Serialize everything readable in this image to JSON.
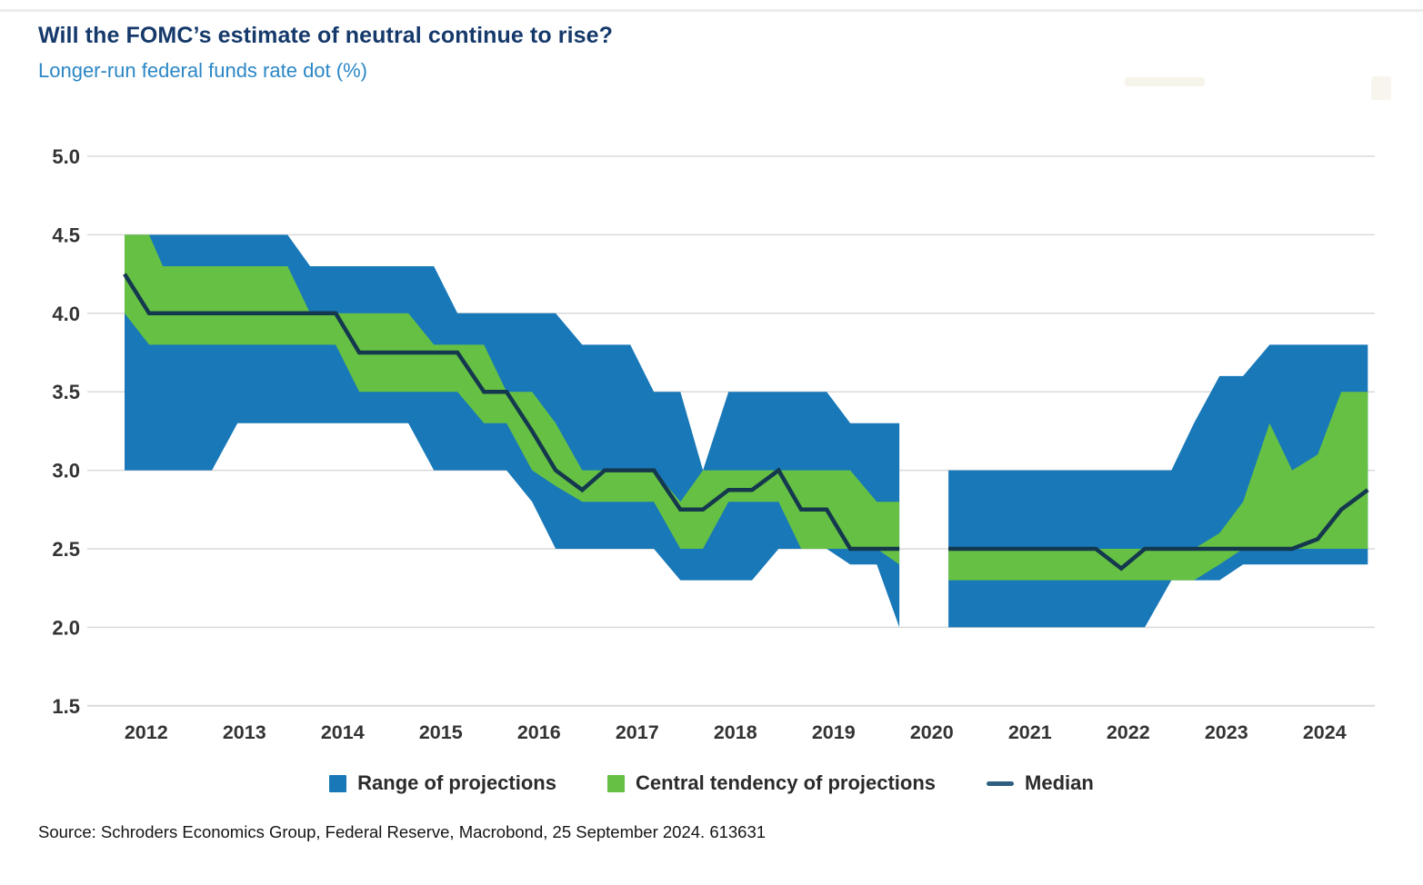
{
  "header": {
    "title": "Will the FOMC’s estimate of neutral continue to rise?",
    "subtitle": "Longer-run federal funds rate dot (%)"
  },
  "source_note": "Source: Schroders Economics Group, Federal Reserve, Macrobond, 25 September 2024. 613631",
  "legend": [
    {
      "id": "range",
      "label": "Range of projections",
      "marker": "square",
      "color": "#1878b8"
    },
    {
      "id": "central-tendency",
      "label": "Central tendency of projections",
      "marker": "square",
      "color": "#66c044"
    },
    {
      "id": "median",
      "label": "Median",
      "marker": "line",
      "color": "#2f5f80"
    }
  ],
  "colors": {
    "range_band": "#1878b8",
    "central_tendency_band": "#66c044",
    "median_line": "#14384e",
    "title_text": "#15396b",
    "subtitle_text": "#2b87c6",
    "gridline": "#dadada",
    "axis_text": "#333333"
  },
  "chart_data": {
    "type": "area",
    "title": "Will the FOMC’s estimate of neutral continue to rise?",
    "subtitle": "Longer-run federal funds rate dot (%)",
    "units": "%",
    "x_axis": {
      "years": [
        2012,
        2013,
        2014,
        2015,
        2016,
        2017,
        2018,
        2019,
        2020,
        2021,
        2022,
        2023,
        2024
      ]
    },
    "y_axis": {
      "min": 1.5,
      "max": 5.0,
      "tick_values": [
        5.0,
        4.5,
        4.0,
        3.5,
        3.0,
        2.5,
        2.0,
        1.5
      ],
      "tick_labels": [
        "5.0",
        "4.5",
        "4.0",
        "3.5",
        "3.0",
        "2.5",
        "2.0",
        "1.5"
      ],
      "grid": true
    },
    "legend_position": "bottom",
    "series": [
      {
        "name": "Range of projections",
        "type": "band"
      },
      {
        "name": "Central tendency of projections",
        "type": "band"
      },
      {
        "name": "Median",
        "type": "line"
      }
    ],
    "gap": {
      "after": "Dec 2019",
      "resumes": "Jun 2020"
    },
    "segments": [
      {
        "meetings": [
          {
            "m": "Jan 2012",
            "t": 2012.06,
            "range": [
              3.0,
              4.5
            ],
            "ct": [
              4.0,
              4.5
            ],
            "median": 4.25
          },
          {
            "m": "Apr 2012",
            "t": 2012.31,
            "range": [
              3.0,
              4.5
            ],
            "ct": [
              3.8,
              4.5
            ],
            "median": 4.0
          },
          {
            "m": "Jun 2012",
            "t": 2012.45,
            "range": [
              3.0,
              4.5
            ],
            "ct": [
              3.8,
              4.3
            ],
            "median": 4.0
          },
          {
            "m": "Sep 2012",
            "t": 2012.72,
            "range": [
              3.0,
              4.5
            ],
            "ct": [
              3.8,
              4.3
            ],
            "median": 4.0
          },
          {
            "m": "Dec 2012",
            "t": 2012.95,
            "range": [
              3.0,
              4.5
            ],
            "ct": [
              3.8,
              4.3
            ],
            "median": 4.0
          },
          {
            "m": "Mar 2013",
            "t": 2013.21,
            "range": [
              3.3,
              4.5
            ],
            "ct": [
              3.8,
              4.3
            ],
            "median": 4.0
          },
          {
            "m": "Jun 2013",
            "t": 2013.45,
            "range": [
              3.3,
              4.5
            ],
            "ct": [
              3.8,
              4.3
            ],
            "median": 4.0
          },
          {
            "m": "Sep 2013",
            "t": 2013.72,
            "range": [
              3.3,
              4.5
            ],
            "ct": [
              3.8,
              4.3
            ],
            "median": 4.0
          },
          {
            "m": "Dec 2013",
            "t": 2013.95,
            "range": [
              3.3,
              4.3
            ],
            "ct": [
              3.8,
              4.0
            ],
            "median": 4.0
          },
          {
            "m": "Mar 2014",
            "t": 2014.21,
            "range": [
              3.3,
              4.3
            ],
            "ct": [
              3.8,
              4.0
            ],
            "median": 4.0
          },
          {
            "m": "Jun 2014",
            "t": 2014.45,
            "range": [
              3.3,
              4.3
            ],
            "ct": [
              3.5,
              4.0
            ],
            "median": 3.75
          },
          {
            "m": "Sep 2014",
            "t": 2014.72,
            "range": [
              3.3,
              4.3
            ],
            "ct": [
              3.5,
              4.0
            ],
            "median": 3.75
          },
          {
            "m": "Dec 2014",
            "t": 2014.95,
            "range": [
              3.3,
              4.3
            ],
            "ct": [
              3.5,
              4.0
            ],
            "median": 3.75
          },
          {
            "m": "Mar 2015",
            "t": 2015.21,
            "range": [
              3.0,
              4.3
            ],
            "ct": [
              3.5,
              3.8
            ],
            "median": 3.75
          },
          {
            "m": "Jun 2015",
            "t": 2015.45,
            "range": [
              3.0,
              4.0
            ],
            "ct": [
              3.5,
              3.8
            ],
            "median": 3.75
          },
          {
            "m": "Sep 2015",
            "t": 2015.72,
            "range": [
              3.0,
              4.0
            ],
            "ct": [
              3.3,
              3.8
            ],
            "median": 3.5
          },
          {
            "m": "Dec 2015",
            "t": 2015.95,
            "range": [
              3.0,
              4.0
            ],
            "ct": [
              3.3,
              3.5
            ],
            "median": 3.5
          },
          {
            "m": "Mar 2016",
            "t": 2016.21,
            "range": [
              2.8,
              4.0
            ],
            "ct": [
              3.0,
              3.5
            ],
            "median": 3.25
          },
          {
            "m": "Jun 2016",
            "t": 2016.45,
            "range": [
              2.5,
              4.0
            ],
            "ct": [
              2.9,
              3.3
            ],
            "median": 3.0
          },
          {
            "m": "Sep 2016",
            "t": 2016.72,
            "range": [
              2.5,
              3.8
            ],
            "ct": [
              2.8,
              3.0
            ],
            "median": 2.875
          },
          {
            "m": "Dec 2016",
            "t": 2016.95,
            "range": [
              2.5,
              3.8
            ],
            "ct": [
              2.8,
              3.0
            ],
            "median": 3.0
          },
          {
            "m": "Mar 2017",
            "t": 2017.21,
            "range": [
              2.5,
              3.8
            ],
            "ct": [
              2.8,
              3.0
            ],
            "median": 3.0
          },
          {
            "m": "Jun 2017",
            "t": 2017.45,
            "range": [
              2.5,
              3.5
            ],
            "ct": [
              2.8,
              3.0
            ],
            "median": 3.0
          },
          {
            "m": "Sep 2017",
            "t": 2017.72,
            "range": [
              2.3,
              3.5
            ],
            "ct": [
              2.5,
              2.8
            ],
            "median": 2.75
          },
          {
            "m": "Dec 2017",
            "t": 2017.95,
            "range": [
              2.3,
              3.0
            ],
            "ct": [
              2.5,
              3.0
            ],
            "median": 2.75
          },
          {
            "m": "Mar 2018",
            "t": 2018.21,
            "range": [
              2.3,
              3.5
            ],
            "ct": [
              2.8,
              3.0
            ],
            "median": 2.875
          },
          {
            "m": "Jun 2018",
            "t": 2018.45,
            "range": [
              2.3,
              3.5
            ],
            "ct": [
              2.8,
              3.0
            ],
            "median": 2.875
          },
          {
            "m": "Sep 2018",
            "t": 2018.72,
            "range": [
              2.5,
              3.5
            ],
            "ct": [
              2.8,
              3.0
            ],
            "median": 3.0
          },
          {
            "m": "Dec 2018",
            "t": 2018.95,
            "range": [
              2.5,
              3.5
            ],
            "ct": [
              2.5,
              3.0
            ],
            "median": 2.75
          },
          {
            "m": "Mar 2019",
            "t": 2019.21,
            "range": [
              2.5,
              3.5
            ],
            "ct": [
              2.5,
              3.0
            ],
            "median": 2.75
          },
          {
            "m": "Jun 2019",
            "t": 2019.45,
            "range": [
              2.4,
              3.3
            ],
            "ct": [
              2.5,
              3.0
            ],
            "median": 2.5
          },
          {
            "m": "Sep 2019",
            "t": 2019.72,
            "range": [
              2.4,
              3.3
            ],
            "ct": [
              2.5,
              2.8
            ],
            "median": 2.5
          },
          {
            "m": "Dec 2019",
            "t": 2019.95,
            "range": [
              2.0,
              3.3
            ],
            "ct": [
              2.4,
              2.8
            ],
            "median": 2.5
          }
        ]
      },
      {
        "meetings": [
          {
            "m": "Jun 2020",
            "t": 2020.45,
            "range": [
              2.0,
              3.0
            ],
            "ct": [
              2.3,
              2.5
            ],
            "median": 2.5
          },
          {
            "m": "Sep 2020",
            "t": 2020.72,
            "range": [
              2.0,
              3.0
            ],
            "ct": [
              2.3,
              2.5
            ],
            "median": 2.5
          },
          {
            "m": "Dec 2020",
            "t": 2020.95,
            "range": [
              2.0,
              3.0
            ],
            "ct": [
              2.3,
              2.5
            ],
            "median": 2.5
          },
          {
            "m": "Mar 2021",
            "t": 2021.21,
            "range": [
              2.0,
              3.0
            ],
            "ct": [
              2.3,
              2.5
            ],
            "median": 2.5
          },
          {
            "m": "Jun 2021",
            "t": 2021.45,
            "range": [
              2.0,
              3.0
            ],
            "ct": [
              2.3,
              2.5
            ],
            "median": 2.5
          },
          {
            "m": "Sep 2021",
            "t": 2021.72,
            "range": [
              2.0,
              3.0
            ],
            "ct": [
              2.3,
              2.5
            ],
            "median": 2.5
          },
          {
            "m": "Dec 2021",
            "t": 2021.95,
            "range": [
              2.0,
              3.0
            ],
            "ct": [
              2.3,
              2.5
            ],
            "median": 2.5
          },
          {
            "m": "Mar 2022",
            "t": 2022.21,
            "range": [
              2.0,
              3.0
            ],
            "ct": [
              2.3,
              2.5
            ],
            "median": 2.375
          },
          {
            "m": "Jun 2022",
            "t": 2022.45,
            "range": [
              2.0,
              3.0
            ],
            "ct": [
              2.3,
              2.5
            ],
            "median": 2.5
          },
          {
            "m": "Sep 2022",
            "t": 2022.72,
            "range": [
              2.3,
              3.0
            ],
            "ct": [
              2.3,
              2.5
            ],
            "median": 2.5
          },
          {
            "m": "Dec 2022",
            "t": 2022.95,
            "range": [
              2.3,
              3.3
            ],
            "ct": [
              2.3,
              2.5
            ],
            "median": 2.5
          },
          {
            "m": "Mar 2023",
            "t": 2023.21,
            "range": [
              2.3,
              3.6
            ],
            "ct": [
              2.4,
              2.6
            ],
            "median": 2.5
          },
          {
            "m": "Jun 2023",
            "t": 2023.45,
            "range": [
              2.4,
              3.6
            ],
            "ct": [
              2.5,
              2.8
            ],
            "median": 2.5
          },
          {
            "m": "Sep 2023",
            "t": 2023.72,
            "range": [
              2.4,
              3.8
            ],
            "ct": [
              2.5,
              3.3
            ],
            "median": 2.5
          },
          {
            "m": "Dec 2023",
            "t": 2023.95,
            "range": [
              2.4,
              3.8
            ],
            "ct": [
              2.5,
              3.0
            ],
            "median": 2.5
          },
          {
            "m": "Mar 2024",
            "t": 2024.21,
            "range": [
              2.4,
              3.8
            ],
            "ct": [
              2.5,
              3.1
            ],
            "median": 2.5625
          },
          {
            "m": "Jun 2024",
            "t": 2024.45,
            "range": [
              2.4,
              3.8
            ],
            "ct": [
              2.5,
              3.5
            ],
            "median": 2.75
          },
          {
            "m": "Sep 2024",
            "t": 2024.72,
            "range": [
              2.4,
              3.8
            ],
            "ct": [
              2.5,
              3.5
            ],
            "median": 2.875
          }
        ]
      }
    ]
  }
}
